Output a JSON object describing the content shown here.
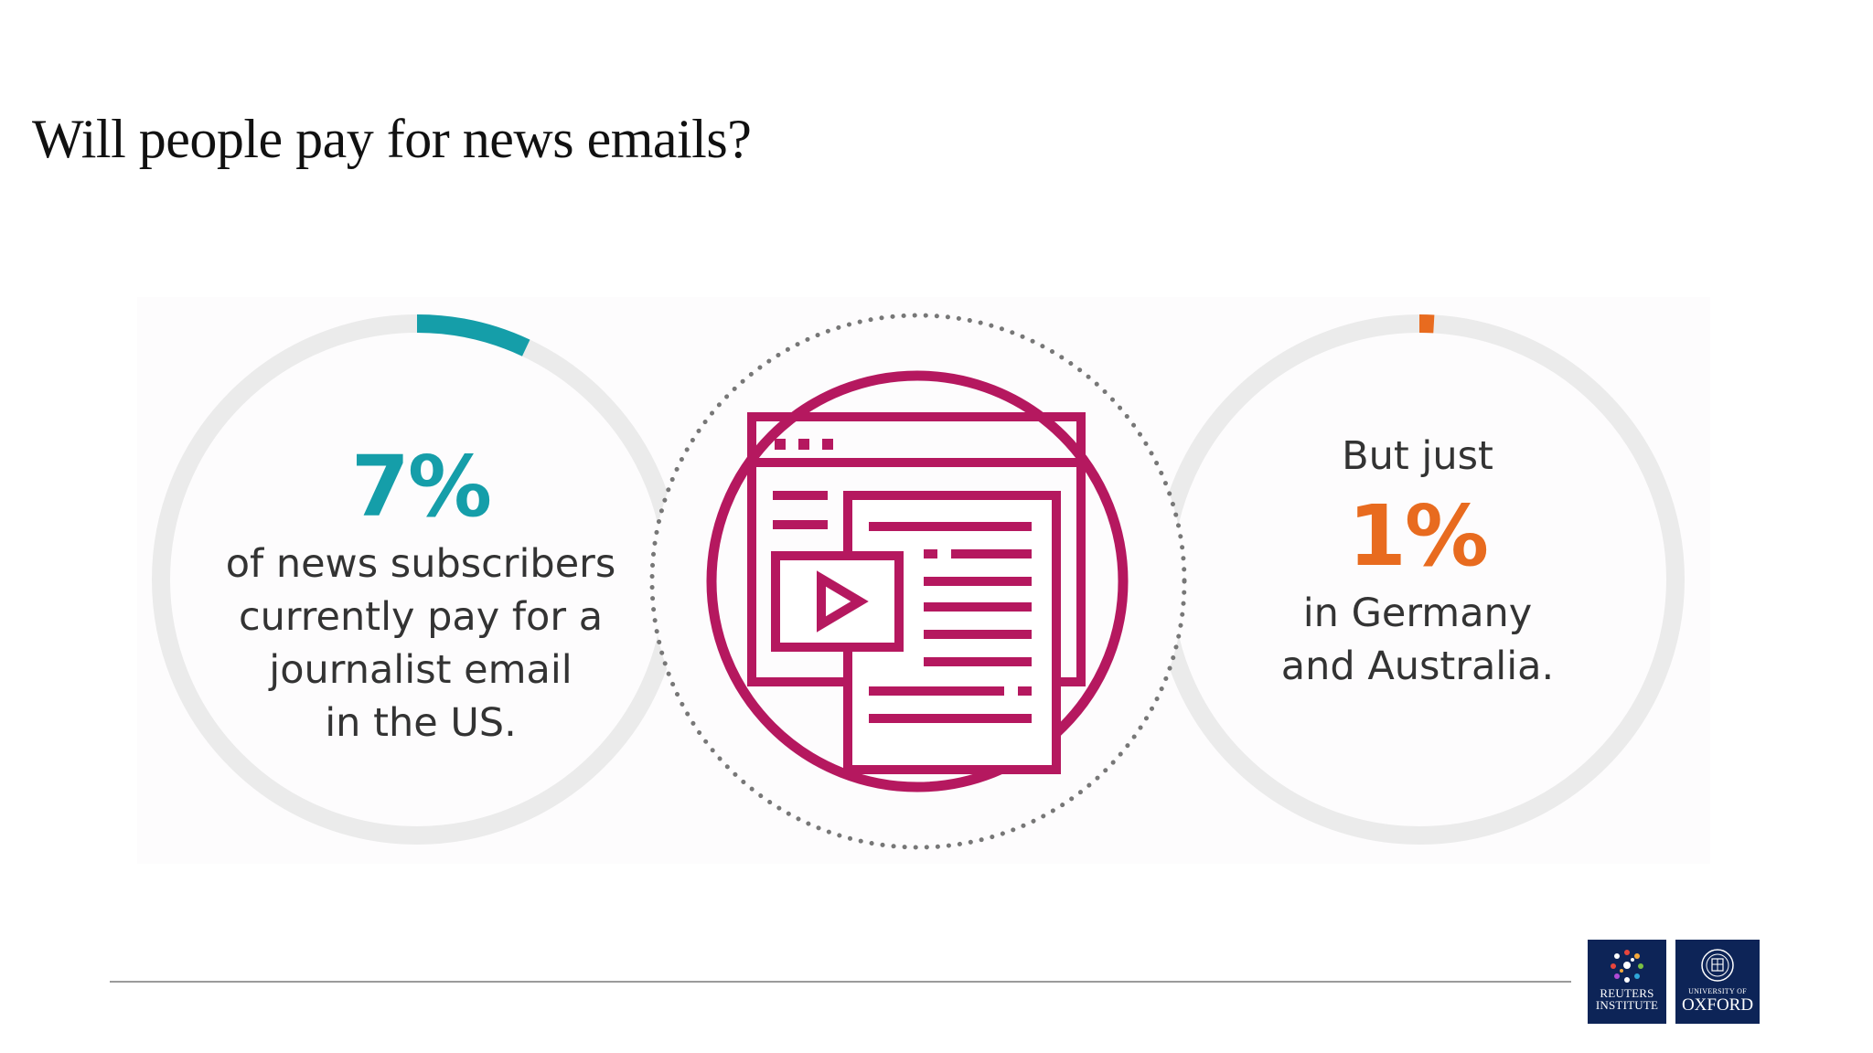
{
  "slide": {
    "title": "Will people pay for news emails?"
  },
  "left_stat": {
    "value": "7%",
    "fraction": 0.07,
    "color": "#159ea9",
    "lines": [
      "of news subscribers",
      "currently pay for a",
      "journalist email",
      "in the US."
    ]
  },
  "center": {
    "icon": "email-newsletter-icon",
    "color": "#b5185f"
  },
  "right_stat": {
    "intro": "But just",
    "value": "1%",
    "fraction": 0.01,
    "color": "#e86b1f",
    "lines": [
      "in Germany",
      "and Australia."
    ]
  },
  "footer": {
    "reuters_logo": {
      "line1": "REUTERS",
      "line2": "INSTITUTE",
      "color": "#0d2457"
    },
    "oxford_logo": {
      "line1": "UNIVERSITY OF",
      "line2": "OXFORD",
      "color": "#0d2457"
    }
  }
}
